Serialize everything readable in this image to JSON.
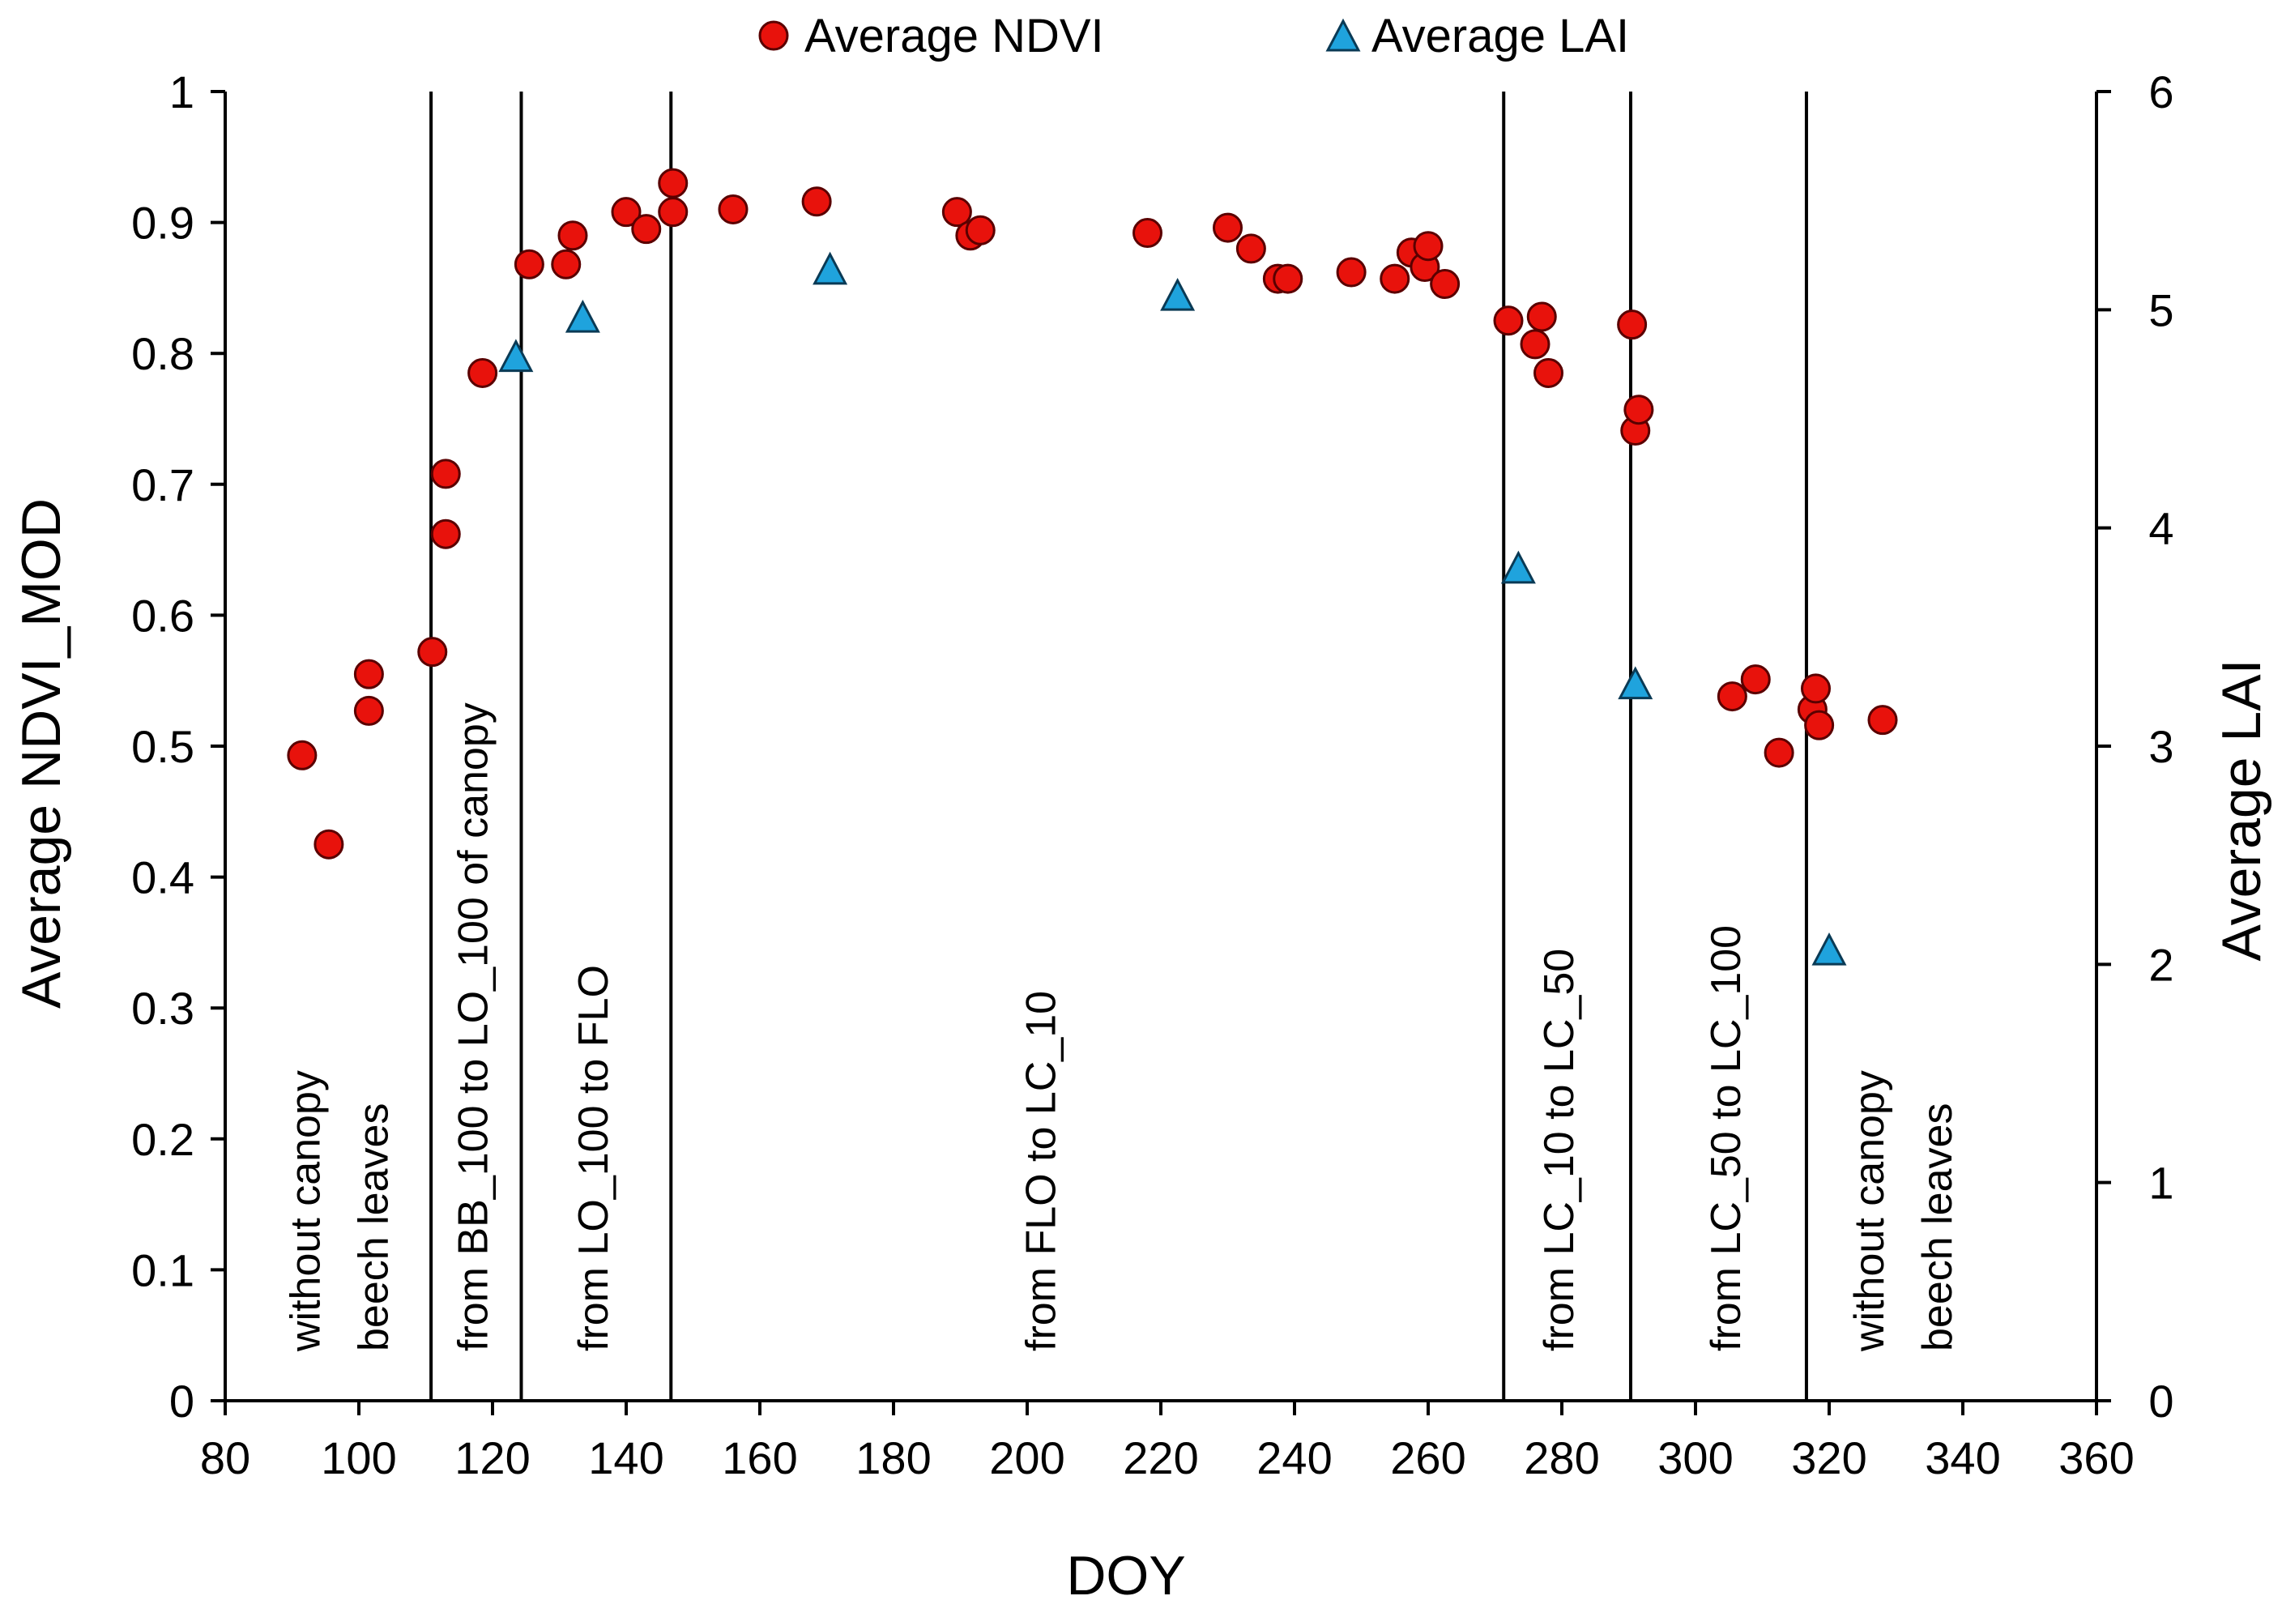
{
  "colors": {
    "ndvi_fill": "#e8120c",
    "ndvi_stroke": "#5a0000",
    "lai_fill": "#1fa3dd",
    "lai_stroke": "#0a3a55",
    "axis": "#000000"
  },
  "legend": {
    "position": "top-center",
    "ndvi_label": "Average NDVI",
    "lai_label": "Average LAI"
  },
  "chart_data": {
    "type": "scatter",
    "xlabel": "DOY",
    "ylabel": "Average NDVI_MOD",
    "y2label": "Average LAI",
    "xlim": [
      80,
      360
    ],
    "ylim": [
      0,
      1
    ],
    "y2lim": [
      0,
      6
    ],
    "xticks": [
      "80",
      "100",
      "120",
      "140",
      "160",
      "180",
      "200",
      "220",
      "240",
      "260",
      "280",
      "300",
      "320",
      "340",
      "360"
    ],
    "yticks": [
      "0",
      "0.1",
      "0.2",
      "0.3",
      "0.4",
      "0.5",
      "0.6",
      "0.7",
      "0.8",
      "0.9",
      "1"
    ],
    "y2ticks": [
      "0",
      "1",
      "2",
      "3",
      "4",
      "5",
      "6"
    ],
    "grid": false,
    "phase_boundaries": [
      110.8,
      124.3,
      146.7,
      271.3,
      290.3,
      316.6
    ],
    "phase_labels": [
      {
        "lines": [
          "without canopy",
          "beech leaves"
        ],
        "doy": 97
      },
      {
        "lines": [
          "from BB_100 to LO_100 of canopy"
        ],
        "doy": 117
      },
      {
        "lines": [
          "from LO_100 to FLO"
        ],
        "doy": 135
      },
      {
        "lines": [
          "from FLO to LC_10"
        ],
        "doy": 202
      },
      {
        "lines": [
          "from LC_10 to  LC_50"
        ],
        "doy": 279.5
      },
      {
        "lines": [
          "from LC_50 to LC_100"
        ],
        "doy": 304.5
      },
      {
        "lines": [
          "without canopy",
          "beech leaves"
        ],
        "doy": 331
      }
    ],
    "series": [
      {
        "name": "Average NDVI",
        "axis": "left",
        "marker": "circle",
        "x": [
          91.5,
          95.5,
          101.5,
          101.5,
          111,
          113,
          113,
          118.5,
          125.5,
          131,
          132,
          140,
          143,
          147,
          147,
          156,
          168.5,
          189.5,
          191.5,
          193,
          218,
          230,
          233.5,
          237.5,
          239,
          248.5,
          255,
          257.5,
          259.5,
          260,
          262.5,
          272,
          276,
          277,
          278,
          290.5,
          291,
          291.5,
          305.5,
          309,
          312.5,
          317.5,
          318,
          318.5,
          328
        ],
        "y": [
          0.493,
          0.425,
          0.527,
          0.555,
          0.572,
          0.708,
          0.662,
          0.785,
          0.868,
          0.868,
          0.89,
          0.908,
          0.895,
          0.93,
          0.908,
          0.91,
          0.916,
          0.908,
          0.89,
          0.894,
          0.892,
          0.896,
          0.88,
          0.857,
          0.857,
          0.862,
          0.857,
          0.877,
          0.866,
          0.882,
          0.853,
          0.825,
          0.807,
          0.828,
          0.785,
          0.822,
          0.741,
          0.757,
          0.538,
          0.551,
          0.495,
          0.528,
          0.544,
          0.516,
          0.52
        ]
      },
      {
        "name": "Average LAI",
        "axis": "right",
        "marker": "triangle",
        "x": [
          123.5,
          133.5,
          170.5,
          222.5,
          273.5,
          291,
          320
        ],
        "y": [
          4.78,
          4.96,
          5.18,
          5.06,
          3.81,
          3.28,
          2.06
        ]
      }
    ]
  }
}
